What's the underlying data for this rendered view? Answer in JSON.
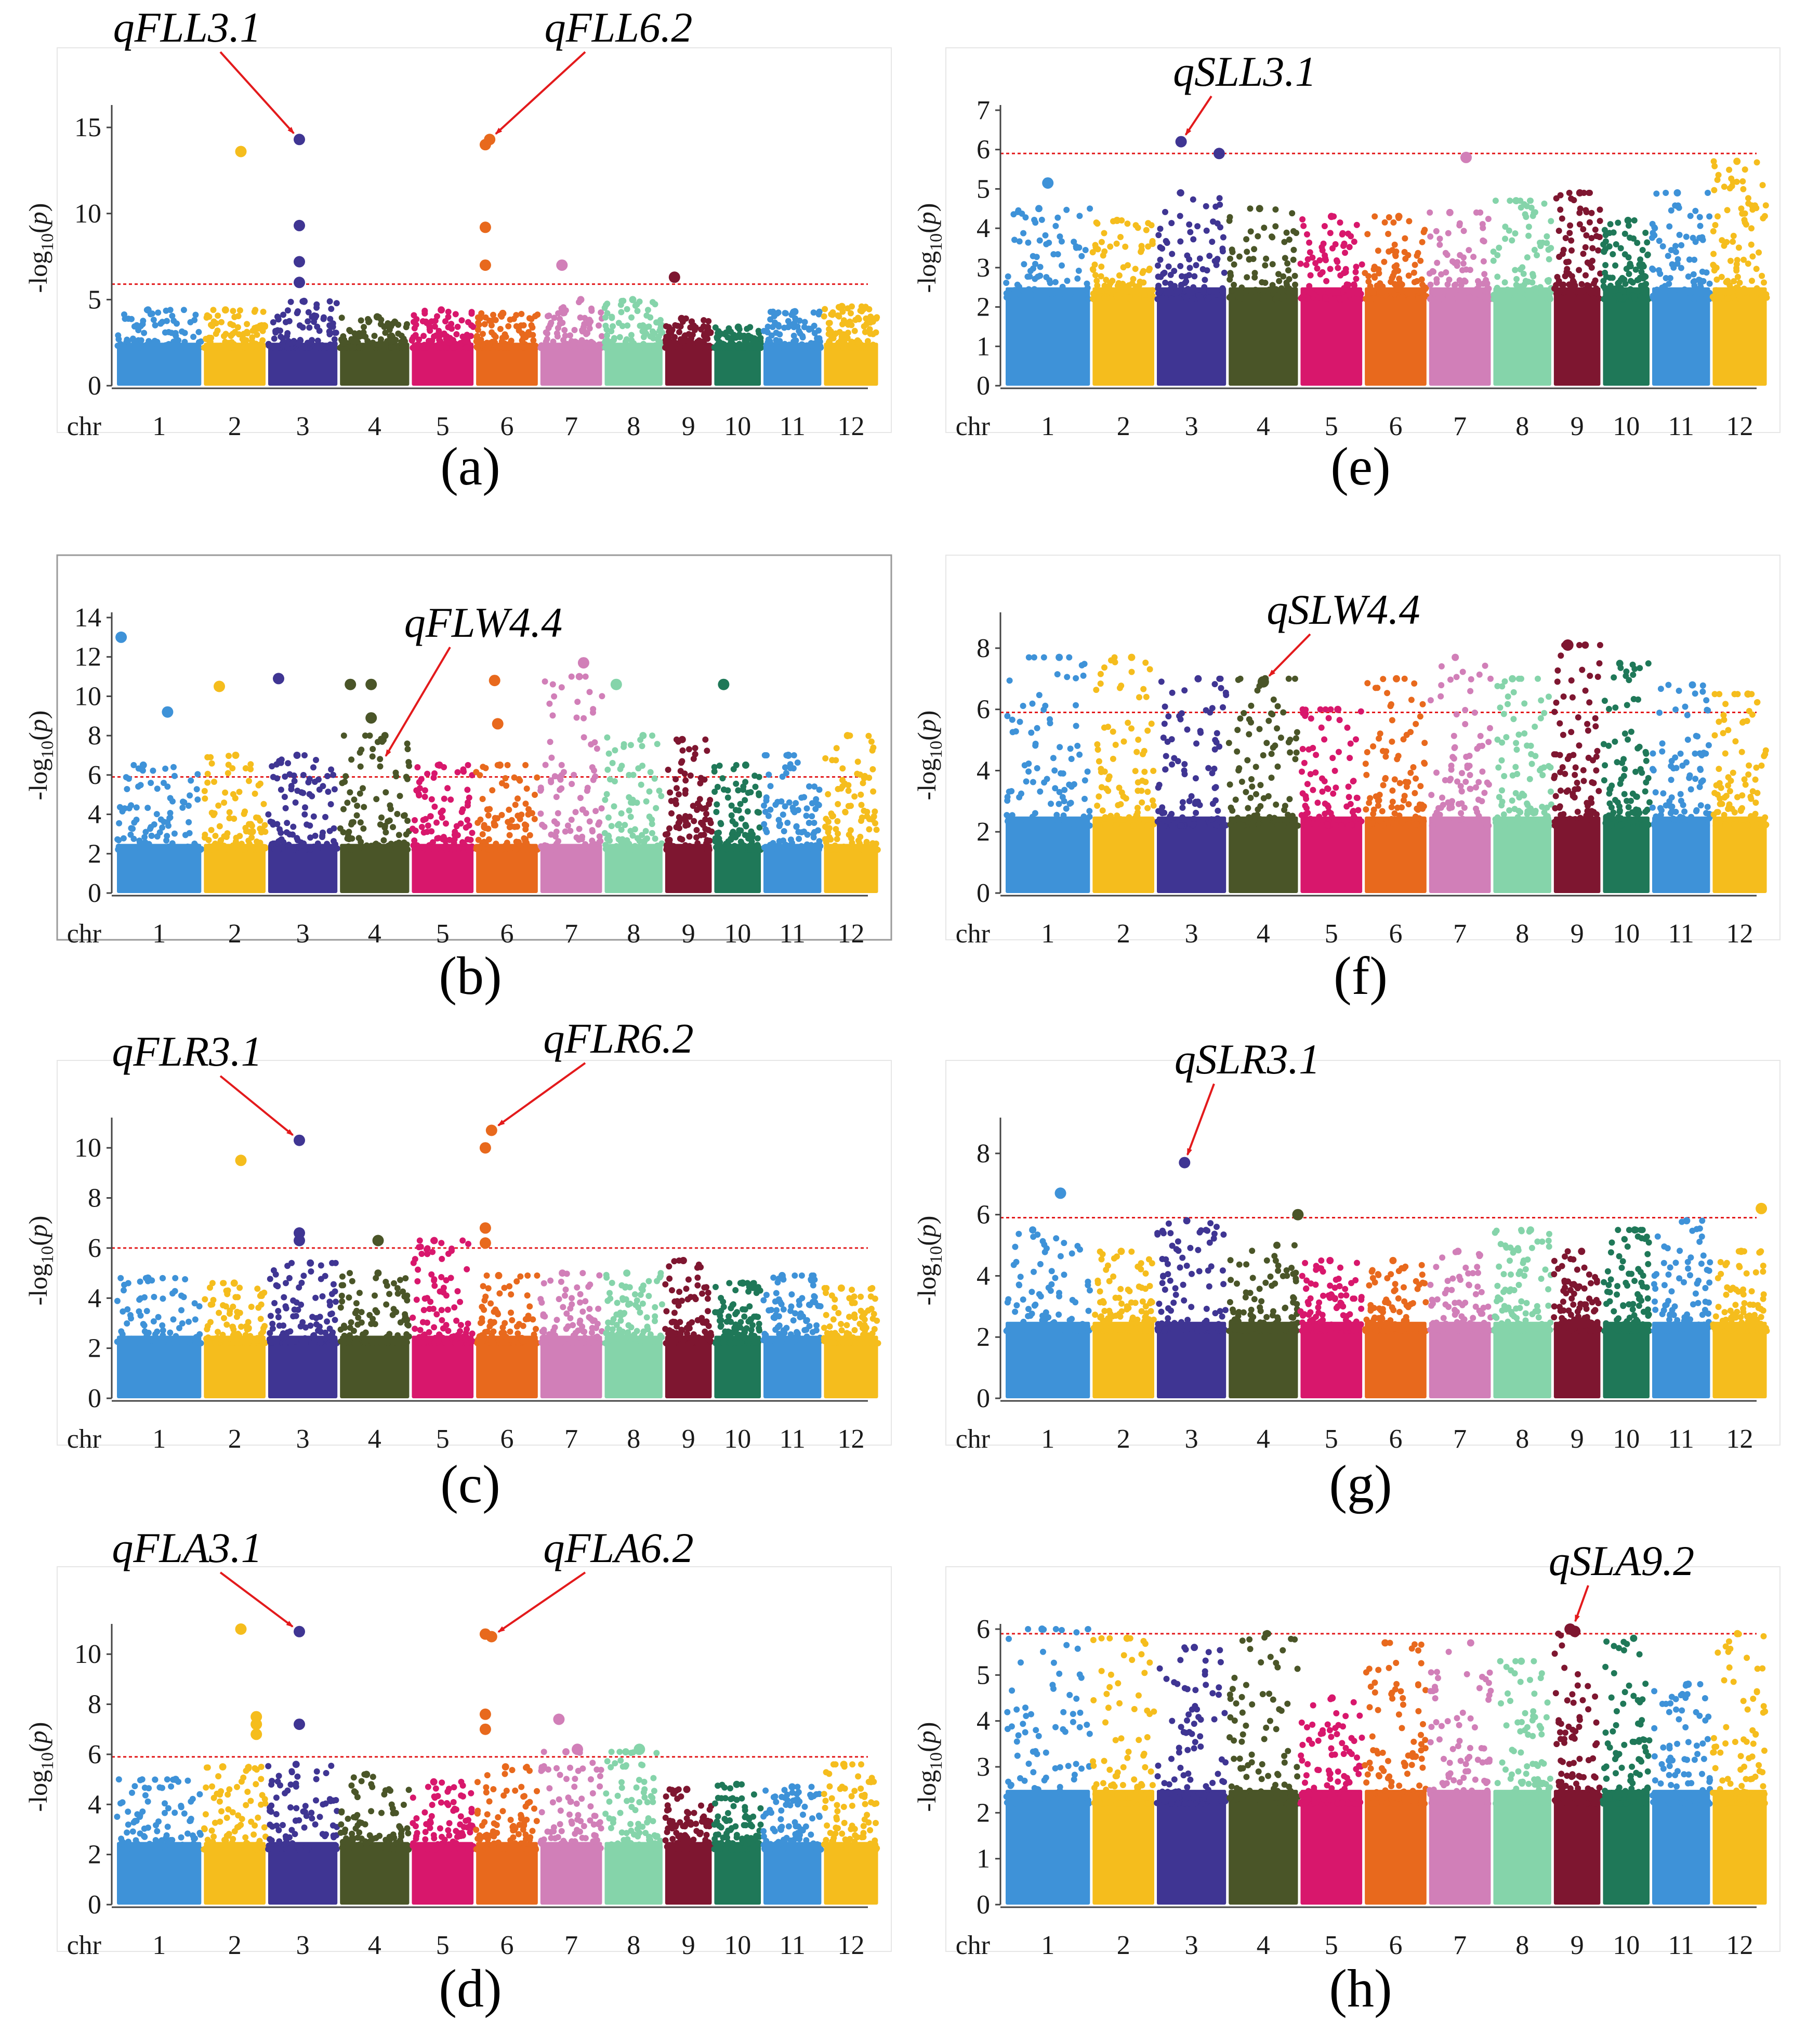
{
  "figure": {
    "axis_prefix": "-log",
    "axis_base": "10",
    "axis_variable": "p",
    "chr_axis_label": "chr",
    "chromosomes": [
      "1",
      "2",
      "3",
      "4",
      "5",
      "6",
      "7",
      "8",
      "9",
      "10",
      "11",
      "12"
    ],
    "chromosome_colors": [
      "#3e92d8",
      "#f5bd1d",
      "#3f3593",
      "#4a5528",
      "#d8176c",
      "#e8691d",
      "#d17fb8",
      "#85d4aa",
      "#7e1630",
      "#1f7858",
      "#3e92d8",
      "#f5bd1d"
    ],
    "threshold_color": "#e31a1c",
    "arrow_color": "#e31a1c"
  },
  "chart_data": [
    {
      "panel": "(a)",
      "type": "scatter",
      "title": "",
      "xlabel": "chr",
      "ylabel": "-log10(p)",
      "ylim": [
        0,
        16
      ],
      "yticks": [
        0,
        5,
        10,
        15
      ],
      "threshold": 5.9,
      "background_max": [
        4.4,
        4.4,
        4.9,
        4.0,
        4.4,
        4.2,
        5.0,
        5.0,
        3.9,
        3.4,
        4.3,
        4.6
      ],
      "significant_points": [
        {
          "chr": 2,
          "pos": 0.6,
          "y": 13.6
        },
        {
          "chr": 3,
          "pos": 0.45,
          "y": 14.3
        },
        {
          "chr": 3,
          "pos": 0.45,
          "y": 9.3
        },
        {
          "chr": 3,
          "pos": 0.45,
          "y": 7.2
        },
        {
          "chr": 3,
          "pos": 0.45,
          "y": 6.0
        },
        {
          "chr": 6,
          "pos": 0.15,
          "y": 14.0
        },
        {
          "chr": 6,
          "pos": 0.22,
          "y": 14.3
        },
        {
          "chr": 6,
          "pos": 0.15,
          "y": 9.2
        },
        {
          "chr": 6,
          "pos": 0.15,
          "y": 7.0
        },
        {
          "chr": 7,
          "pos": 0.35,
          "y": 7.0
        },
        {
          "chr": 9,
          "pos": 0.2,
          "y": 6.3
        }
      ],
      "annotations": [
        {
          "text": "qFLL3.1",
          "chr": 3,
          "pos": 0.45,
          "y": 14.3
        },
        {
          "text": "qFLL6.2",
          "chr": 6,
          "pos": 0.22,
          "y": 14.3
        }
      ]
    },
    {
      "panel": "(b)",
      "type": "scatter",
      "title": "",
      "xlabel": "chr",
      "ylabel": "-log10(p)",
      "ylim": [
        0,
        14
      ],
      "yticks": [
        0,
        2,
        4,
        6,
        8,
        10,
        12,
        14
      ],
      "threshold": 5.9,
      "background_max": [
        6.5,
        7.0,
        7.0,
        8.0,
        6.5,
        6.5,
        11.0,
        8.0,
        7.8,
        6.5,
        7.0,
        8.0
      ],
      "significant_points": [
        {
          "chr": 1,
          "pos": 0.05,
          "y": 13.0
        },
        {
          "chr": 1,
          "pos": 0.6,
          "y": 9.2
        },
        {
          "chr": 2,
          "pos": 0.25,
          "y": 10.5
        },
        {
          "chr": 3,
          "pos": 0.15,
          "y": 10.9
        },
        {
          "chr": 4,
          "pos": 0.15,
          "y": 10.6
        },
        {
          "chr": 4,
          "pos": 0.45,
          "y": 10.6
        },
        {
          "chr": 4,
          "pos": 0.45,
          "y": 8.9
        },
        {
          "chr": 6,
          "pos": 0.3,
          "y": 10.8
        },
        {
          "chr": 6,
          "pos": 0.35,
          "y": 8.6
        },
        {
          "chr": 7,
          "pos": 0.7,
          "y": 11.7
        },
        {
          "chr": 8,
          "pos": 0.2,
          "y": 10.6
        },
        {
          "chr": 10,
          "pos": 0.2,
          "y": 10.6
        }
      ],
      "annotations": [
        {
          "text": "qFLW4.4",
          "chr": 4,
          "pos": 0.6,
          "y": 6.6
        }
      ]
    },
    {
      "panel": "(c)",
      "type": "scatter",
      "title": "",
      "xlabel": "chr",
      "ylabel": "-log10(p)",
      "ylim": [
        0,
        11
      ],
      "yticks": [
        0,
        2,
        4,
        6,
        8,
        10
      ],
      "threshold": 6.0,
      "background_max": [
        4.8,
        4.6,
        5.4,
        5.0,
        6.3,
        4.9,
        5.0,
        5.0,
        5.5,
        4.6,
        4.9,
        4.4
      ],
      "significant_points": [
        {
          "chr": 2,
          "pos": 0.6,
          "y": 9.5
        },
        {
          "chr": 3,
          "pos": 0.45,
          "y": 10.3
        },
        {
          "chr": 3,
          "pos": 0.45,
          "y": 6.6
        },
        {
          "chr": 3,
          "pos": 0.45,
          "y": 6.3
        },
        {
          "chr": 4,
          "pos": 0.55,
          "y": 6.3
        },
        {
          "chr": 6,
          "pos": 0.15,
          "y": 10.0
        },
        {
          "chr": 6,
          "pos": 0.25,
          "y": 10.7
        },
        {
          "chr": 6,
          "pos": 0.15,
          "y": 6.8
        },
        {
          "chr": 6,
          "pos": 0.15,
          "y": 6.2
        }
      ],
      "annotations": [
        {
          "text": "qFLR3.1",
          "chr": 3,
          "pos": 0.45,
          "y": 10.3
        },
        {
          "text": "qFLR6.2",
          "chr": 6,
          "pos": 0.25,
          "y": 10.7
        }
      ]
    },
    {
      "panel": "(d)",
      "type": "scatter",
      "title": "",
      "xlabel": "chr",
      "ylabel": "-log10(p)",
      "ylim": [
        0,
        11
      ],
      "yticks": [
        0,
        2,
        4,
        6,
        8,
        10
      ],
      "threshold": 5.9,
      "background_max": [
        5.0,
        5.5,
        5.6,
        5.2,
        4.9,
        5.5,
        6.1,
        6.1,
        4.6,
        4.8,
        4.7,
        5.6
      ],
      "significant_points": [
        {
          "chr": 2,
          "pos": 0.6,
          "y": 11.0
        },
        {
          "chr": 2,
          "pos": 0.85,
          "y": 7.5
        },
        {
          "chr": 2,
          "pos": 0.85,
          "y": 7.2
        },
        {
          "chr": 2,
          "pos": 0.85,
          "y": 6.8
        },
        {
          "chr": 3,
          "pos": 0.45,
          "y": 10.9
        },
        {
          "chr": 3,
          "pos": 0.45,
          "y": 7.2
        },
        {
          "chr": 6,
          "pos": 0.15,
          "y": 10.8
        },
        {
          "chr": 6,
          "pos": 0.25,
          "y": 10.7
        },
        {
          "chr": 6,
          "pos": 0.15,
          "y": 7.6
        },
        {
          "chr": 6,
          "pos": 0.15,
          "y": 7.0
        },
        {
          "chr": 7,
          "pos": 0.3,
          "y": 7.4
        },
        {
          "chr": 7,
          "pos": 0.6,
          "y": 6.2
        },
        {
          "chr": 8,
          "pos": 0.6,
          "y": 6.2
        }
      ],
      "annotations": [
        {
          "text": "qFLA3.1",
          "chr": 3,
          "pos": 0.45,
          "y": 10.9
        },
        {
          "text": "qFLA6.2",
          "chr": 6,
          "pos": 0.25,
          "y": 10.7
        }
      ]
    },
    {
      "panel": "(e)",
      "type": "scatter",
      "title": "",
      "xlabel": "chr",
      "ylabel": "-log10(p)",
      "ylim": [
        0,
        7
      ],
      "yticks": [
        0,
        1,
        2,
        3,
        4,
        5,
        6,
        7
      ],
      "threshold": 5.9,
      "background_max": [
        4.5,
        4.2,
        4.9,
        4.5,
        4.3,
        4.3,
        4.4,
        4.7,
        4.9,
        4.2,
        4.9,
        5.7
      ],
      "significant_points": [
        {
          "chr": 3,
          "pos": 0.35,
          "y": 6.2
        },
        {
          "chr": 3,
          "pos": 0.9,
          "y": 5.9
        },
        {
          "chr": 7,
          "pos": 0.6,
          "y": 5.8
        },
        {
          "chr": 1,
          "pos": 0.5,
          "y": 5.15
        }
      ],
      "annotations": [
        {
          "text": "qSLL3.1",
          "chr": 3,
          "pos": 0.35,
          "y": 6.2
        }
      ]
    },
    {
      "panel": "(f)",
      "type": "scatter",
      "title": "",
      "xlabel": "chr",
      "ylabel": "-log10(p)",
      "ylim": [
        0,
        9
      ],
      "yticks": [
        0,
        2,
        4,
        6,
        8
      ],
      "threshold": 5.9,
      "background_max": [
        7.7,
        7.7,
        7.0,
        7.0,
        6.0,
        7.0,
        7.7,
        7.0,
        8.1,
        7.5,
        6.8,
        6.5
      ],
      "significant_points": [
        {
          "chr": 4,
          "pos": 0.5,
          "y": 6.9
        },
        {
          "chr": 9,
          "pos": 0.3,
          "y": 8.1
        }
      ],
      "annotations": [
        {
          "text": "qSLW4.4",
          "chr": 4,
          "pos": 0.5,
          "y": 6.9
        }
      ]
    },
    {
      "panel": "(g)",
      "type": "scatter",
      "title": "",
      "xlabel": "chr",
      "ylabel": "-log10(p)",
      "ylim": [
        0,
        9
      ],
      "yticks": [
        0,
        2,
        4,
        6,
        8
      ],
      "threshold": 5.9,
      "background_max": [
        5.5,
        4.8,
        5.8,
        5.0,
        4.5,
        4.5,
        4.8,
        5.5,
        4.8,
        5.5,
        5.8,
        4.8
      ],
      "significant_points": [
        {
          "chr": 1,
          "pos": 0.65,
          "y": 6.7
        },
        {
          "chr": 3,
          "pos": 0.4,
          "y": 7.7
        },
        {
          "chr": 4,
          "pos": 1.1,
          "y": 6.0
        },
        {
          "chr": 12,
          "pos": 0.9,
          "y": 6.2
        }
      ],
      "annotations": [
        {
          "text": "qSLR3.1",
          "chr": 3,
          "pos": 0.4,
          "y": 7.7
        }
      ]
    },
    {
      "panel": "(h)",
      "type": "scatter",
      "title": "",
      "xlabel": "chr",
      "ylabel": "-log10(p)",
      "ylim": [
        0,
        6
      ],
      "yticks": [
        0,
        1,
        2,
        3,
        4,
        5,
        6
      ],
      "threshold": 5.9,
      "background_max": [
        6.0,
        5.8,
        5.6,
        5.9,
        4.5,
        5.7,
        5.7,
        5.3,
        5.9,
        5.8,
        4.8,
        5.9
      ],
      "significant_points": [
        {
          "chr": 9,
          "pos": 0.35,
          "y": 6.0
        },
        {
          "chr": 9,
          "pos": 0.45,
          "y": 5.95
        }
      ],
      "annotations": [
        {
          "text": "qSLA9.2",
          "chr": 9,
          "pos": 0.4,
          "y": 6.0
        }
      ]
    }
  ]
}
